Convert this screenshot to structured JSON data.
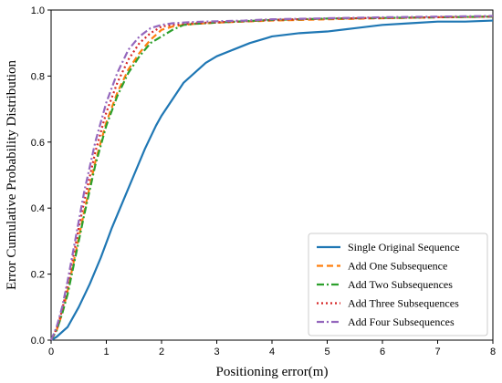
{
  "chart_data": {
    "type": "line",
    "title": "",
    "xlabel": "Positioning error(m)",
    "ylabel": "Error Cumulative Probability Distribution",
    "xlim": [
      0,
      8
    ],
    "ylim": [
      0,
      1.0
    ],
    "xticks": [
      0,
      1,
      2,
      3,
      4,
      5,
      6,
      7,
      8
    ],
    "yticks": [
      0.0,
      0.2,
      0.4,
      0.6,
      0.8,
      1.0
    ],
    "xtick_labels": [
      "0",
      "1",
      "2",
      "3",
      "4",
      "5",
      "6",
      "7",
      "8"
    ],
    "ytick_labels": [
      "0.0",
      "0.2",
      "0.4",
      "0.6",
      "0.8",
      "1.0"
    ],
    "grid": false,
    "legend_position": "bottom-right",
    "series": [
      {
        "name": "Single Original Sequence",
        "color": "#1f77b4",
        "dash": "solid",
        "x": [
          0,
          0.1,
          0.3,
          0.5,
          0.7,
          0.9,
          1.1,
          1.3,
          1.5,
          1.7,
          1.9,
          2.0,
          2.2,
          2.4,
          2.6,
          2.8,
          3.0,
          3.3,
          3.6,
          3.9,
          4.0,
          4.5,
          5.0,
          5.5,
          6.0,
          6.5,
          7.0,
          7.5,
          8.0
        ],
        "y": [
          0,
          0.01,
          0.04,
          0.1,
          0.17,
          0.25,
          0.34,
          0.42,
          0.5,
          0.58,
          0.65,
          0.68,
          0.73,
          0.78,
          0.81,
          0.84,
          0.86,
          0.88,
          0.9,
          0.915,
          0.92,
          0.93,
          0.935,
          0.945,
          0.955,
          0.96,
          0.965,
          0.965,
          0.968
        ]
      },
      {
        "name": "Add One  Subsequence",
        "color": "#ff7f0e",
        "dash": "dashed",
        "x": [
          0,
          0.1,
          0.2,
          0.3,
          0.4,
          0.5,
          0.6,
          0.8,
          1.0,
          1.2,
          1.4,
          1.6,
          1.8,
          2.0,
          2.2,
          2.4,
          2.6,
          3.0,
          3.5,
          4.0,
          5.0,
          6.0,
          7.0,
          8.0
        ],
        "y": [
          0,
          0.03,
          0.08,
          0.15,
          0.23,
          0.31,
          0.39,
          0.54,
          0.66,
          0.75,
          0.82,
          0.87,
          0.91,
          0.94,
          0.95,
          0.955,
          0.958,
          0.962,
          0.965,
          0.968,
          0.972,
          0.975,
          0.978,
          0.98
        ]
      },
      {
        "name": "Add Two   Subsequences",
        "color": "#2ca02c",
        "dash": "dashdot",
        "x": [
          0,
          0.1,
          0.2,
          0.3,
          0.4,
          0.5,
          0.6,
          0.8,
          1.0,
          1.2,
          1.4,
          1.6,
          1.8,
          2.0,
          2.2,
          2.4,
          2.6,
          3.0,
          3.5,
          4.0,
          5.0,
          6.0,
          7.0,
          8.0
        ],
        "y": [
          0,
          0.03,
          0.08,
          0.14,
          0.22,
          0.3,
          0.38,
          0.53,
          0.65,
          0.74,
          0.81,
          0.86,
          0.9,
          0.92,
          0.94,
          0.955,
          0.958,
          0.962,
          0.966,
          0.97,
          0.974,
          0.976,
          0.978,
          0.98
        ]
      },
      {
        "name": "Add Three Subsequences",
        "color": "#d62728",
        "dash": "dotted",
        "x": [
          0,
          0.1,
          0.2,
          0.3,
          0.4,
          0.5,
          0.6,
          0.8,
          1.0,
          1.2,
          1.4,
          1.6,
          1.8,
          2.0,
          2.2,
          2.4,
          2.6,
          3.0,
          3.5,
          4.0,
          5.0,
          6.0,
          7.0,
          8.0
        ],
        "y": [
          0,
          0.035,
          0.09,
          0.17,
          0.25,
          0.34,
          0.42,
          0.57,
          0.69,
          0.78,
          0.85,
          0.9,
          0.93,
          0.95,
          0.955,
          0.958,
          0.96,
          0.963,
          0.966,
          0.97,
          0.974,
          0.976,
          0.978,
          0.98
        ]
      },
      {
        "name": "Add Four   Subsequences",
        "color": "#9467bd",
        "dash": "dashdot",
        "x": [
          0,
          0.1,
          0.2,
          0.3,
          0.4,
          0.5,
          0.6,
          0.8,
          1.0,
          1.2,
          1.4,
          1.6,
          1.8,
          2.0,
          2.2,
          2.4,
          2.6,
          3.0,
          3.5,
          4.0,
          5.0,
          6.0,
          7.0,
          8.0
        ],
        "y": [
          0,
          0.04,
          0.1,
          0.18,
          0.27,
          0.36,
          0.45,
          0.6,
          0.72,
          0.81,
          0.88,
          0.92,
          0.945,
          0.955,
          0.96,
          0.962,
          0.964,
          0.966,
          0.968,
          0.972,
          0.975,
          0.978,
          0.98,
          0.982
        ]
      }
    ]
  }
}
